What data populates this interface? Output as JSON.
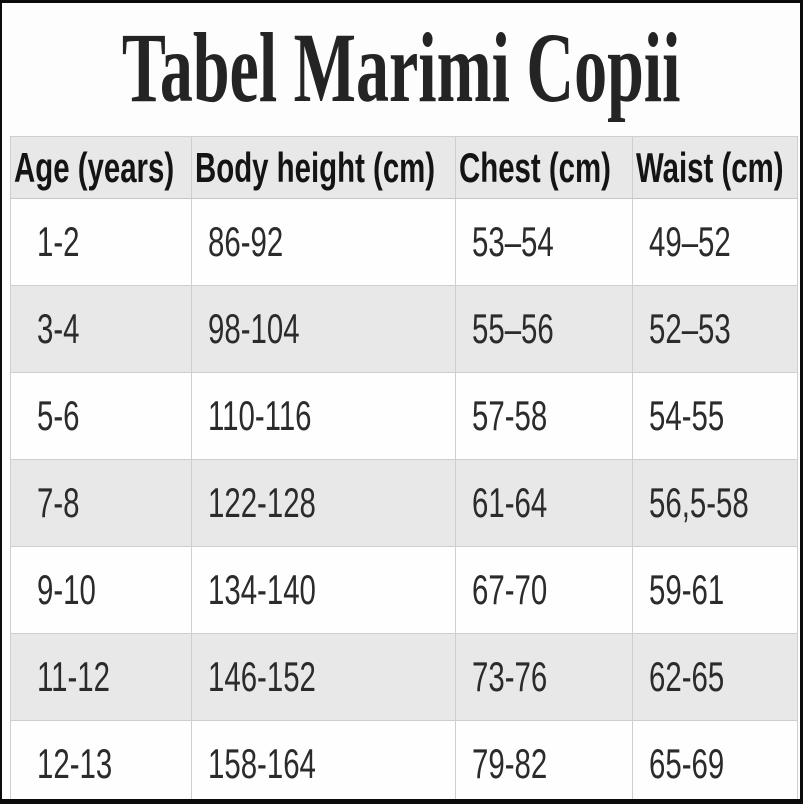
{
  "page": {
    "title": "Tabel Marimi Copii"
  },
  "chart_data": {
    "type": "table",
    "title": "Tabel Marimi Copii",
    "columns": [
      "Age (years)",
      "Body height (cm)",
      "Chest (cm)",
      "Waist (cm)"
    ],
    "rows": [
      [
        "1-2",
        "86-92",
        "53–54",
        "49–52"
      ],
      [
        "3-4",
        "98-104",
        "55–56",
        "52–53"
      ],
      [
        "5-6",
        "110-116",
        "57-58",
        "54-55"
      ],
      [
        "7-8",
        "122-128",
        "61-64",
        "56,5-58"
      ],
      [
        "9-10",
        "134-140",
        "67-70",
        "59-61"
      ],
      [
        "11-12",
        "146-152",
        "73-76",
        "62-65"
      ],
      [
        "12-13",
        "158-164",
        "79-82",
        "65-69"
      ]
    ],
    "layout": {
      "striped_row_indexes": [
        1,
        3,
        5
      ],
      "grid": true,
      "header_position": "top"
    }
  },
  "colors": {
    "frame": "#0b0b0b",
    "header_bg": "#e8e8e8",
    "stripe_bg": "#e8e8e8",
    "row_bg": "#fefefe",
    "grid_border": "#cfcfcf",
    "title_text": "#242424",
    "cell_text": "#2b2b2b"
  }
}
